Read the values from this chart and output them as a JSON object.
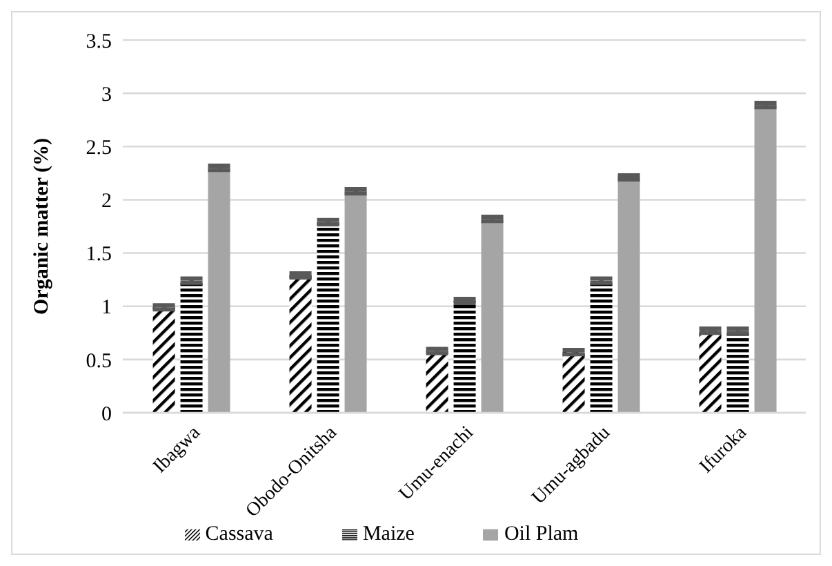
{
  "chart_data": {
    "type": "bar",
    "ylabel": "Organic matter (%)",
    "categories": [
      "Ibagwa",
      "Obodo-Onitsha",
      "Umu-enachi",
      "Umu-agbadu",
      "Ifuroka"
    ],
    "series": [
      {
        "name": "Cassava",
        "color": "#000000",
        "values": [
          0.99,
          1.29,
          0.58,
          0.57,
          0.77
        ],
        "errors": [
          0.02,
          0.02,
          0.02,
          0.02,
          0.02
        ]
      },
      {
        "name": "Maize",
        "color": "#000000",
        "values": [
          1.24,
          1.79,
          1.05,
          1.24,
          0.77
        ],
        "errors": [
          0.02,
          0.02,
          0.02,
          0.02,
          0.02
        ]
      },
      {
        "name": "Oil Plam",
        "color": "#a5a5a5",
        "values": [
          2.3,
          2.08,
          1.82,
          2.21,
          2.89
        ],
        "errors": [
          0.02,
          0.02,
          0.02,
          0.02,
          0.02
        ]
      }
    ],
    "ylim": [
      0,
      3.5
    ],
    "yticks": [
      0,
      0.5,
      1,
      1.5,
      2,
      2.5,
      3,
      3.5
    ],
    "grid": "y",
    "legend": "bottom"
  }
}
